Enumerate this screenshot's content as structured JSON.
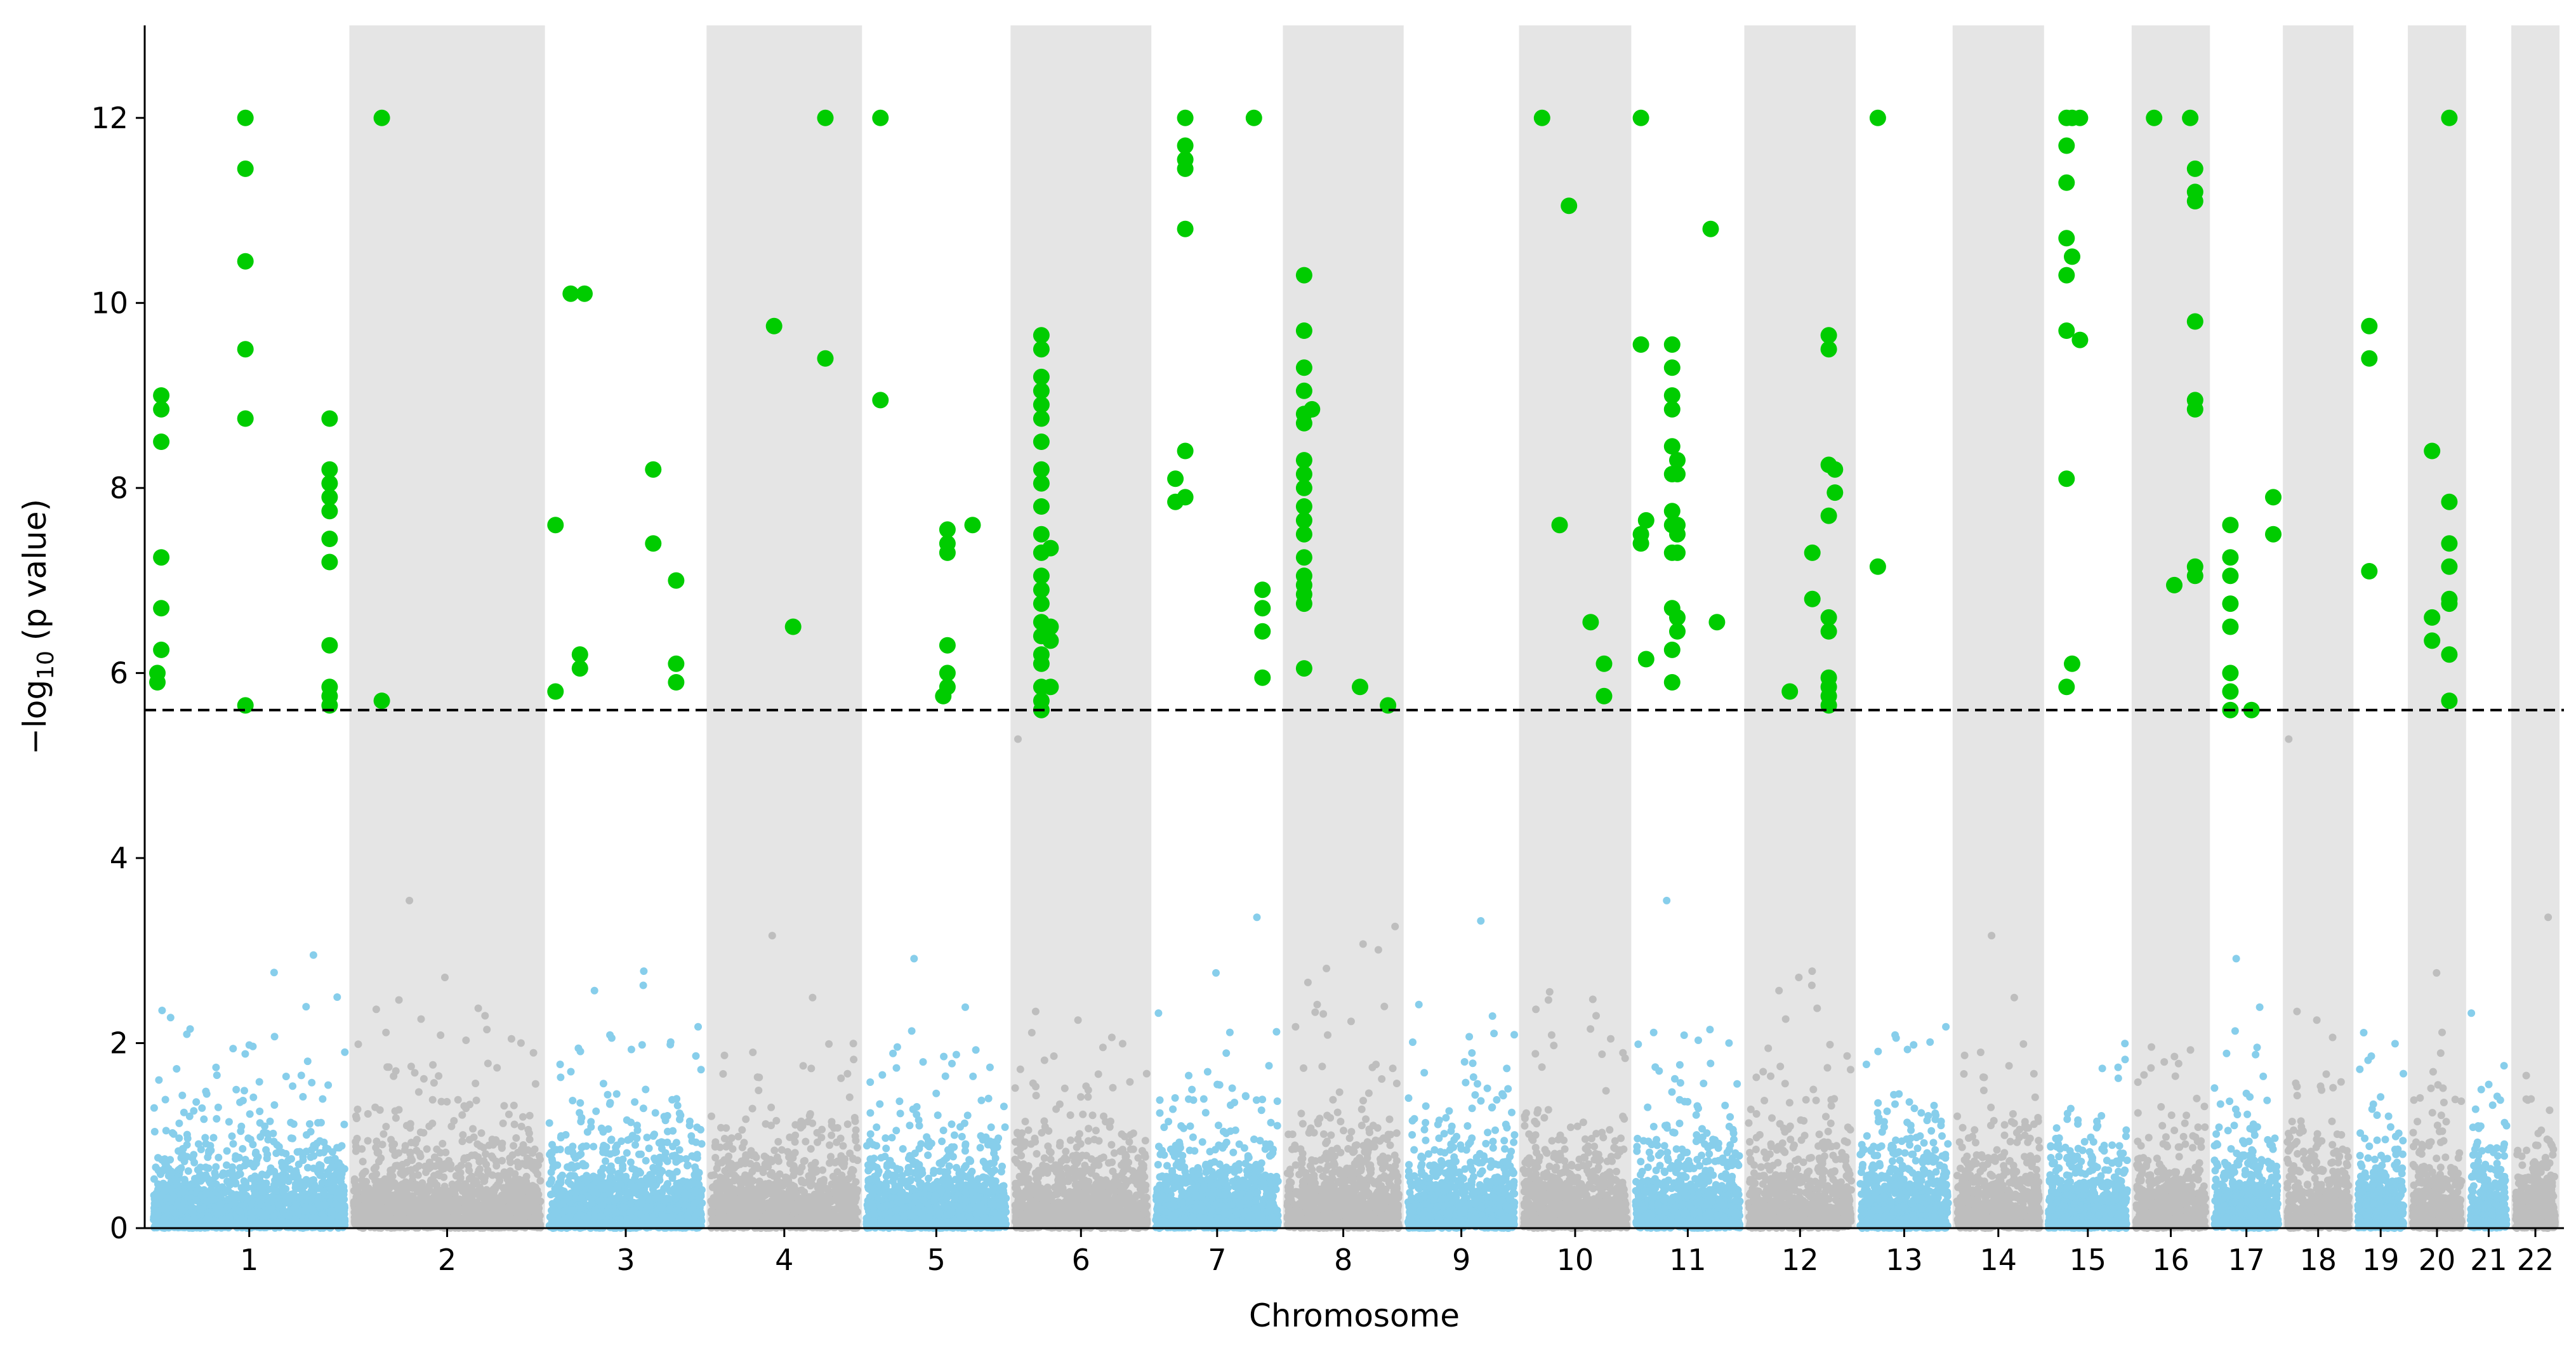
{
  "chart_data": {
    "type": "scatter",
    "subtype": "manhattan",
    "title": "",
    "xlabel": "Chromosome",
    "ylabel": "−log10 (p value)",
    "ylabel_main": "−log",
    "ylabel_sub": "10",
    "ylabel_tail": " (p value)",
    "ylim": [
      0,
      13
    ],
    "yticks": [
      0,
      2,
      4,
      6,
      8,
      10,
      12
    ],
    "significance_threshold": 5.6,
    "threshold_style": "dashed",
    "grid": false,
    "legend": "none",
    "colors": {
      "odd_chromosome_points": "#87CEEB",
      "even_chromosome_points": "#BEBEBE",
      "significant_points": "#00CC00",
      "shaded_band": "#E5E5E5",
      "threshold_line": "#000000"
    },
    "chromosomes": [
      {
        "label": "1",
        "relative_length": 248
      },
      {
        "label": "2",
        "relative_length": 242
      },
      {
        "label": "3",
        "relative_length": 198
      },
      {
        "label": "4",
        "relative_length": 190
      },
      {
        "label": "5",
        "relative_length": 181
      },
      {
        "label": "6",
        "relative_length": 171
      },
      {
        "label": "7",
        "relative_length": 159
      },
      {
        "label": "8",
        "relative_length": 145
      },
      {
        "label": "9",
        "relative_length": 138
      },
      {
        "label": "10",
        "relative_length": 134
      },
      {
        "label": "11",
        "relative_length": 135
      },
      {
        "label": "12",
        "relative_length": 133
      },
      {
        "label": "13",
        "relative_length": 114
      },
      {
        "label": "14",
        "relative_length": 107
      },
      {
        "label": "15",
        "relative_length": 102
      },
      {
        "label": "16",
        "relative_length": 90
      },
      {
        "label": "17",
        "relative_length": 83
      },
      {
        "label": "18",
        "relative_length": 80
      },
      {
        "label": "19",
        "relative_length": 59
      },
      {
        "label": "20",
        "relative_length": 64
      },
      {
        "label": "21",
        "relative_length": 47
      },
      {
        "label": "22",
        "relative_length": 51
      }
    ],
    "significant_snps": [
      {
        "chr": "1",
        "pos": 0.02,
        "y": 6.0
      },
      {
        "chr": "1",
        "pos": 0.02,
        "y": 5.9
      },
      {
        "chr": "1",
        "pos": 0.04,
        "y": 9.0
      },
      {
        "chr": "1",
        "pos": 0.04,
        "y": 8.85
      },
      {
        "chr": "1",
        "pos": 0.04,
        "y": 8.5
      },
      {
        "chr": "1",
        "pos": 0.04,
        "y": 7.25
      },
      {
        "chr": "1",
        "pos": 0.04,
        "y": 6.7
      },
      {
        "chr": "1",
        "pos": 0.04,
        "y": 6.25
      },
      {
        "chr": "1",
        "pos": 0.48,
        "y": 12.0
      },
      {
        "chr": "1",
        "pos": 0.48,
        "y": 11.45
      },
      {
        "chr": "1",
        "pos": 0.48,
        "y": 10.45
      },
      {
        "chr": "1",
        "pos": 0.48,
        "y": 9.5
      },
      {
        "chr": "1",
        "pos": 0.48,
        "y": 8.75
      },
      {
        "chr": "1",
        "pos": 0.48,
        "y": 5.65
      },
      {
        "chr": "1",
        "pos": 0.92,
        "y": 8.75
      },
      {
        "chr": "1",
        "pos": 0.92,
        "y": 8.2
      },
      {
        "chr": "1",
        "pos": 0.92,
        "y": 8.05
      },
      {
        "chr": "1",
        "pos": 0.92,
        "y": 7.9
      },
      {
        "chr": "1",
        "pos": 0.92,
        "y": 7.75
      },
      {
        "chr": "1",
        "pos": 0.92,
        "y": 7.45
      },
      {
        "chr": "1",
        "pos": 0.92,
        "y": 7.2
      },
      {
        "chr": "1",
        "pos": 0.92,
        "y": 6.3
      },
      {
        "chr": "1",
        "pos": 0.92,
        "y": 5.85
      },
      {
        "chr": "1",
        "pos": 0.92,
        "y": 5.75
      },
      {
        "chr": "1",
        "pos": 0.92,
        "y": 5.65
      },
      {
        "chr": "2",
        "pos": 0.15,
        "y": 12.0
      },
      {
        "chr": "2",
        "pos": 0.15,
        "y": 5.7
      },
      {
        "chr": "3",
        "pos": 0.04,
        "y": 7.6
      },
      {
        "chr": "3",
        "pos": 0.04,
        "y": 5.8
      },
      {
        "chr": "3",
        "pos": 0.14,
        "y": 10.1
      },
      {
        "chr": "3",
        "pos": 0.23,
        "y": 10.1
      },
      {
        "chr": "3",
        "pos": 0.2,
        "y": 6.2
      },
      {
        "chr": "3",
        "pos": 0.2,
        "y": 6.05
      },
      {
        "chr": "3",
        "pos": 0.68,
        "y": 8.2
      },
      {
        "chr": "3",
        "pos": 0.68,
        "y": 7.4
      },
      {
        "chr": "3",
        "pos": 0.83,
        "y": 7.0
      },
      {
        "chr": "3",
        "pos": 0.83,
        "y": 6.1
      },
      {
        "chr": "3",
        "pos": 0.83,
        "y": 5.9
      },
      {
        "chr": "4",
        "pos": 0.43,
        "y": 9.75
      },
      {
        "chr": "4",
        "pos": 0.56,
        "y": 6.5
      },
      {
        "chr": "4",
        "pos": 0.78,
        "y": 12.0
      },
      {
        "chr": "4",
        "pos": 0.78,
        "y": 9.4
      },
      {
        "chr": "5",
        "pos": 0.1,
        "y": 12.0
      },
      {
        "chr": "5",
        "pos": 0.1,
        "y": 8.95
      },
      {
        "chr": "5",
        "pos": 0.58,
        "y": 7.55
      },
      {
        "chr": "5",
        "pos": 0.58,
        "y": 7.4
      },
      {
        "chr": "5",
        "pos": 0.58,
        "y": 7.3
      },
      {
        "chr": "5",
        "pos": 0.58,
        "y": 6.3
      },
      {
        "chr": "5",
        "pos": 0.58,
        "y": 6.0
      },
      {
        "chr": "5",
        "pos": 0.58,
        "y": 5.85
      },
      {
        "chr": "5",
        "pos": 0.55,
        "y": 5.75
      },
      {
        "chr": "5",
        "pos": 0.76,
        "y": 7.6
      },
      {
        "chr": "6",
        "pos": 0.2,
        "y": 9.65
      },
      {
        "chr": "6",
        "pos": 0.2,
        "y": 9.5
      },
      {
        "chr": "6",
        "pos": 0.2,
        "y": 9.2
      },
      {
        "chr": "6",
        "pos": 0.2,
        "y": 9.05
      },
      {
        "chr": "6",
        "pos": 0.2,
        "y": 8.9
      },
      {
        "chr": "6",
        "pos": 0.2,
        "y": 8.75
      },
      {
        "chr": "6",
        "pos": 0.2,
        "y": 8.5
      },
      {
        "chr": "6",
        "pos": 0.2,
        "y": 8.2
      },
      {
        "chr": "6",
        "pos": 0.2,
        "y": 8.05
      },
      {
        "chr": "6",
        "pos": 0.2,
        "y": 7.8
      },
      {
        "chr": "6",
        "pos": 0.2,
        "y": 7.5
      },
      {
        "chr": "6",
        "pos": 0.2,
        "y": 7.3
      },
      {
        "chr": "6",
        "pos": 0.2,
        "y": 7.05
      },
      {
        "chr": "6",
        "pos": 0.2,
        "y": 6.9
      },
      {
        "chr": "6",
        "pos": 0.2,
        "y": 6.75
      },
      {
        "chr": "6",
        "pos": 0.2,
        "y": 6.55
      },
      {
        "chr": "6",
        "pos": 0.2,
        "y": 6.4
      },
      {
        "chr": "6",
        "pos": 0.2,
        "y": 6.2
      },
      {
        "chr": "6",
        "pos": 0.2,
        "y": 6.1
      },
      {
        "chr": "6",
        "pos": 0.2,
        "y": 5.85
      },
      {
        "chr": "6",
        "pos": 0.2,
        "y": 5.7
      },
      {
        "chr": "6",
        "pos": 0.2,
        "y": 5.6
      },
      {
        "chr": "6",
        "pos": 0.27,
        "y": 7.35
      },
      {
        "chr": "6",
        "pos": 0.27,
        "y": 6.5
      },
      {
        "chr": "6",
        "pos": 0.27,
        "y": 6.35
      },
      {
        "chr": "6",
        "pos": 0.27,
        "y": 5.85
      },
      {
        "chr": "7",
        "pos": 0.16,
        "y": 8.1
      },
      {
        "chr": "7",
        "pos": 0.16,
        "y": 7.85
      },
      {
        "chr": "7",
        "pos": 0.24,
        "y": 12.0
      },
      {
        "chr": "7",
        "pos": 0.24,
        "y": 11.7
      },
      {
        "chr": "7",
        "pos": 0.24,
        "y": 11.55
      },
      {
        "chr": "7",
        "pos": 0.24,
        "y": 11.45
      },
      {
        "chr": "7",
        "pos": 0.24,
        "y": 10.8
      },
      {
        "chr": "7",
        "pos": 0.24,
        "y": 8.4
      },
      {
        "chr": "7",
        "pos": 0.24,
        "y": 7.9
      },
      {
        "chr": "7",
        "pos": 0.8,
        "y": 12.0
      },
      {
        "chr": "7",
        "pos": 0.87,
        "y": 6.9
      },
      {
        "chr": "7",
        "pos": 0.87,
        "y": 6.7
      },
      {
        "chr": "7",
        "pos": 0.87,
        "y": 6.45
      },
      {
        "chr": "7",
        "pos": 0.87,
        "y": 5.95
      },
      {
        "chr": "8",
        "pos": 0.15,
        "y": 10.3
      },
      {
        "chr": "8",
        "pos": 0.15,
        "y": 9.7
      },
      {
        "chr": "8",
        "pos": 0.15,
        "y": 9.3
      },
      {
        "chr": "8",
        "pos": 0.15,
        "y": 9.05
      },
      {
        "chr": "8",
        "pos": 0.15,
        "y": 8.8
      },
      {
        "chr": "8",
        "pos": 0.15,
        "y": 8.7
      },
      {
        "chr": "8",
        "pos": 0.15,
        "y": 8.3
      },
      {
        "chr": "8",
        "pos": 0.15,
        "y": 8.15
      },
      {
        "chr": "8",
        "pos": 0.15,
        "y": 8.0
      },
      {
        "chr": "8",
        "pos": 0.15,
        "y": 7.8
      },
      {
        "chr": "8",
        "pos": 0.15,
        "y": 7.65
      },
      {
        "chr": "8",
        "pos": 0.15,
        "y": 7.5
      },
      {
        "chr": "8",
        "pos": 0.15,
        "y": 7.25
      },
      {
        "chr": "8",
        "pos": 0.15,
        "y": 7.05
      },
      {
        "chr": "8",
        "pos": 0.15,
        "y": 6.95
      },
      {
        "chr": "8",
        "pos": 0.15,
        "y": 6.85
      },
      {
        "chr": "8",
        "pos": 0.15,
        "y": 6.75
      },
      {
        "chr": "8",
        "pos": 0.15,
        "y": 6.05
      },
      {
        "chr": "8",
        "pos": 0.22,
        "y": 8.85
      },
      {
        "chr": "8",
        "pos": 0.65,
        "y": 5.85
      },
      {
        "chr": "8",
        "pos": 0.9,
        "y": 5.65
      },
      {
        "chr": "10",
        "pos": 0.18,
        "y": 12.0
      },
      {
        "chr": "10",
        "pos": 0.35,
        "y": 7.6
      },
      {
        "chr": "10",
        "pos": 0.44,
        "y": 11.05
      },
      {
        "chr": "10",
        "pos": 0.65,
        "y": 6.55
      },
      {
        "chr": "10",
        "pos": 0.78,
        "y": 6.1
      },
      {
        "chr": "10",
        "pos": 0.78,
        "y": 5.75
      },
      {
        "chr": "11",
        "pos": 0.05,
        "y": 12.0
      },
      {
        "chr": "11",
        "pos": 0.05,
        "y": 9.55
      },
      {
        "chr": "11",
        "pos": 0.05,
        "y": 7.5
      },
      {
        "chr": "11",
        "pos": 0.05,
        "y": 7.4
      },
      {
        "chr": "11",
        "pos": 0.1,
        "y": 7.65
      },
      {
        "chr": "11",
        "pos": 0.1,
        "y": 6.15
      },
      {
        "chr": "11",
        "pos": 0.35,
        "y": 9.55
      },
      {
        "chr": "11",
        "pos": 0.35,
        "y": 9.3
      },
      {
        "chr": "11",
        "pos": 0.35,
        "y": 9.0
      },
      {
        "chr": "11",
        "pos": 0.35,
        "y": 8.85
      },
      {
        "chr": "11",
        "pos": 0.35,
        "y": 8.45
      },
      {
        "chr": "11",
        "pos": 0.35,
        "y": 8.15
      },
      {
        "chr": "11",
        "pos": 0.35,
        "y": 7.75
      },
      {
        "chr": "11",
        "pos": 0.35,
        "y": 7.6
      },
      {
        "chr": "11",
        "pos": 0.35,
        "y": 7.3
      },
      {
        "chr": "11",
        "pos": 0.35,
        "y": 6.7
      },
      {
        "chr": "11",
        "pos": 0.35,
        "y": 6.25
      },
      {
        "chr": "11",
        "pos": 0.35,
        "y": 5.9
      },
      {
        "chr": "11",
        "pos": 0.4,
        "y": 8.3
      },
      {
        "chr": "11",
        "pos": 0.4,
        "y": 8.15
      },
      {
        "chr": "11",
        "pos": 0.4,
        "y": 7.6
      },
      {
        "chr": "11",
        "pos": 0.4,
        "y": 7.5
      },
      {
        "chr": "11",
        "pos": 0.4,
        "y": 7.3
      },
      {
        "chr": "11",
        "pos": 0.4,
        "y": 6.6
      },
      {
        "chr": "11",
        "pos": 0.4,
        "y": 6.45
      },
      {
        "chr": "11",
        "pos": 0.72,
        "y": 10.8
      },
      {
        "chr": "11",
        "pos": 0.78,
        "y": 6.55
      },
      {
        "chr": "12",
        "pos": 0.4,
        "y": 5.8
      },
      {
        "chr": "12",
        "pos": 0.62,
        "y": 7.3
      },
      {
        "chr": "12",
        "pos": 0.62,
        "y": 6.8
      },
      {
        "chr": "12",
        "pos": 0.78,
        "y": 9.65
      },
      {
        "chr": "12",
        "pos": 0.78,
        "y": 9.5
      },
      {
        "chr": "12",
        "pos": 0.78,
        "y": 8.25
      },
      {
        "chr": "12",
        "pos": 0.78,
        "y": 7.7
      },
      {
        "chr": "12",
        "pos": 0.78,
        "y": 6.6
      },
      {
        "chr": "12",
        "pos": 0.78,
        "y": 6.45
      },
      {
        "chr": "12",
        "pos": 0.78,
        "y": 5.95
      },
      {
        "chr": "12",
        "pos": 0.78,
        "y": 5.85
      },
      {
        "chr": "12",
        "pos": 0.78,
        "y": 5.75
      },
      {
        "chr": "12",
        "pos": 0.78,
        "y": 5.65
      },
      {
        "chr": "12",
        "pos": 0.84,
        "y": 8.2
      },
      {
        "chr": "12",
        "pos": 0.84,
        "y": 7.95
      },
      {
        "chr": "13",
        "pos": 0.2,
        "y": 12.0
      },
      {
        "chr": "13",
        "pos": 0.2,
        "y": 7.15
      },
      {
        "chr": "15",
        "pos": 0.23,
        "y": 12.0
      },
      {
        "chr": "15",
        "pos": 0.23,
        "y": 11.7
      },
      {
        "chr": "15",
        "pos": 0.23,
        "y": 11.3
      },
      {
        "chr": "15",
        "pos": 0.23,
        "y": 10.7
      },
      {
        "chr": "15",
        "pos": 0.23,
        "y": 10.3
      },
      {
        "chr": "15",
        "pos": 0.23,
        "y": 9.7
      },
      {
        "chr": "15",
        "pos": 0.23,
        "y": 8.1
      },
      {
        "chr": "15",
        "pos": 0.23,
        "y": 5.85
      },
      {
        "chr": "15",
        "pos": 0.3,
        "y": 12.0
      },
      {
        "chr": "15",
        "pos": 0.3,
        "y": 10.5
      },
      {
        "chr": "15",
        "pos": 0.3,
        "y": 6.1
      },
      {
        "chr": "15",
        "pos": 0.4,
        "y": 12.0
      },
      {
        "chr": "15",
        "pos": 0.4,
        "y": 9.6
      },
      {
        "chr": "16",
        "pos": 0.26,
        "y": 12.0
      },
      {
        "chr": "16",
        "pos": 0.55,
        "y": 6.95
      },
      {
        "chr": "16",
        "pos": 0.78,
        "y": 12.0
      },
      {
        "chr": "16",
        "pos": 0.85,
        "y": 11.45
      },
      {
        "chr": "16",
        "pos": 0.85,
        "y": 11.2
      },
      {
        "chr": "16",
        "pos": 0.85,
        "y": 11.1
      },
      {
        "chr": "16",
        "pos": 0.85,
        "y": 9.8
      },
      {
        "chr": "16",
        "pos": 0.85,
        "y": 8.95
      },
      {
        "chr": "16",
        "pos": 0.85,
        "y": 8.85
      },
      {
        "chr": "16",
        "pos": 0.85,
        "y": 7.15
      },
      {
        "chr": "16",
        "pos": 0.85,
        "y": 7.05
      },
      {
        "chr": "17",
        "pos": 0.25,
        "y": 7.6
      },
      {
        "chr": "17",
        "pos": 0.25,
        "y": 7.25
      },
      {
        "chr": "17",
        "pos": 0.25,
        "y": 7.05
      },
      {
        "chr": "17",
        "pos": 0.25,
        "y": 6.75
      },
      {
        "chr": "17",
        "pos": 0.25,
        "y": 6.5
      },
      {
        "chr": "17",
        "pos": 0.25,
        "y": 6.0
      },
      {
        "chr": "17",
        "pos": 0.25,
        "y": 5.8
      },
      {
        "chr": "17",
        "pos": 0.25,
        "y": 5.6
      },
      {
        "chr": "17",
        "pos": 0.58,
        "y": 5.6
      },
      {
        "chr": "17",
        "pos": 0.92,
        "y": 7.9
      },
      {
        "chr": "17",
        "pos": 0.92,
        "y": 7.5
      },
      {
        "chr": "19",
        "pos": 0.25,
        "y": 9.75
      },
      {
        "chr": "19",
        "pos": 0.25,
        "y": 9.4
      },
      {
        "chr": "19",
        "pos": 0.25,
        "y": 7.1
      },
      {
        "chr": "20",
        "pos": 0.4,
        "y": 8.4
      },
      {
        "chr": "20",
        "pos": 0.4,
        "y": 6.6
      },
      {
        "chr": "20",
        "pos": 0.4,
        "y": 6.35
      },
      {
        "chr": "20",
        "pos": 0.75,
        "y": 12.0
      },
      {
        "chr": "20",
        "pos": 0.75,
        "y": 7.85
      },
      {
        "chr": "20",
        "pos": 0.75,
        "y": 7.4
      },
      {
        "chr": "20",
        "pos": 0.75,
        "y": 7.15
      },
      {
        "chr": "20",
        "pos": 0.75,
        "y": 6.8
      },
      {
        "chr": "20",
        "pos": 0.75,
        "y": 6.75
      },
      {
        "chr": "20",
        "pos": 0.75,
        "y": 6.2
      },
      {
        "chr": "20",
        "pos": 0.75,
        "y": 5.7
      }
    ],
    "background_points_note": "dense cloud of sub-threshold SNPs (mostly below 2, sparse up to ~5.5) in alternating colors per chromosome"
  }
}
